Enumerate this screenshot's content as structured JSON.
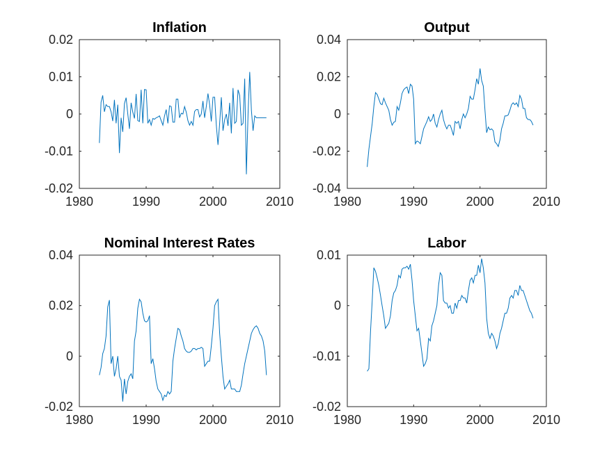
{
  "chart_data": [
    {
      "type": "line",
      "title": "Inflation",
      "xlim": [
        1980,
        2010
      ],
      "ylim": [
        -0.02,
        0.02
      ],
      "xticks": [
        1980,
        1990,
        2000,
        2010
      ],
      "xtick_labels": [
        "1980",
        "1990",
        "2000",
        "2010"
      ],
      "yticks": [
        -0.02,
        -0.01,
        0,
        0.01,
        0.02
      ],
      "ytick_labels": [
        "-0.02",
        "-0.01",
        "0",
        "0.01",
        "0.02"
      ],
      "color": "#0072BD",
      "grid": false,
      "x": [
        1983.0,
        1983.25,
        1983.5,
        1983.75,
        1984.0,
        1984.25,
        1984.5,
        1984.75,
        1985.0,
        1985.25,
        1985.5,
        1985.75,
        1986.0,
        1986.25,
        1986.5,
        1986.75,
        1987.0,
        1987.25,
        1987.5,
        1987.75,
        1988.0,
        1988.25,
        1988.5,
        1988.75,
        1989.0,
        1989.25,
        1989.5,
        1989.75,
        1990.0,
        1990.25,
        1990.5,
        1990.75,
        1991.0,
        1991.25,
        1991.5,
        1991.75,
        1992.0,
        1992.25,
        1992.5,
        1992.75,
        1993.0,
        1993.25,
        1993.5,
        1993.75,
        1994.0,
        1994.25,
        1994.5,
        1994.75,
        1995.0,
        1995.25,
        1995.5,
        1995.75,
        1996.0,
        1996.25,
        1996.5,
        1996.75,
        1997.0,
        1997.25,
        1997.5,
        1997.75,
        1998.0,
        1998.25,
        1998.5,
        1998.75,
        1999.0,
        1999.25,
        1999.5,
        1999.75,
        2000.0,
        2000.25,
        2000.5,
        2000.75,
        2001.0,
        2001.25,
        2001.5,
        2001.75,
        2002.0,
        2002.25,
        2002.5,
        2002.75,
        2003.0,
        2003.25,
        2003.5,
        2003.75,
        2004.0,
        2004.25,
        2004.5,
        2004.75,
        2005.0,
        2005.25,
        2005.5,
        2005.75,
        2006.0,
        2006.25,
        2006.5,
        2006.75,
        2007.0,
        2007.25,
        2007.5,
        2007.75,
        2008.0
      ],
      "y": [
        -0.0078,
        0.0032,
        0.005,
        0.0006,
        0.0025,
        0.002,
        0.002,
        0.0006,
        -0.0019,
        0.0038,
        -0.0025,
        0.0025,
        -0.0105,
        -0.001,
        -0.0048,
        0.0028,
        0.0044,
        0.0,
        -0.004,
        0.003,
        0.0005,
        -0.0012,
        0.0054,
        -0.0018,
        -0.002,
        0.0065,
        -0.0025,
        0.0066,
        0.0065,
        -0.0025,
        -0.0015,
        -0.003,
        -0.0012,
        -0.0014,
        -0.001,
        -0.0008,
        -0.0005,
        -0.0018,
        -0.003,
        -0.0005,
        0.0012,
        -0.0025,
        0.0022,
        0.002,
        -0.0022,
        -0.0022,
        0.004,
        0.004,
        -0.001,
        0.0002,
        0.0,
        0.002,
        0.0005,
        -0.0018,
        -0.003,
        -0.002,
        -0.003,
        0.0007,
        0.0012,
        0.0012,
        -0.0008,
        0.0,
        0.0035,
        -0.001,
        0.002,
        0.0055,
        0.0025,
        -0.002,
        0.0045,
        0.0045,
        -0.003,
        -0.0083,
        -0.0025,
        0.0045,
        -0.0045,
        -0.0015,
        0.0,
        -0.0032,
        0.003,
        -0.0052,
        0.007,
        -0.0025,
        -0.002,
        0.0065,
        0.005,
        -0.003,
        -0.0025,
        0.0095,
        -0.0162,
        0.0,
        0.0113,
        0.001,
        -0.0045,
        -0.0005,
        -0.001,
        -0.001,
        -0.001,
        -0.001,
        -0.001,
        -0.001,
        -0.001
      ]
    },
    {
      "type": "line",
      "title": "Output",
      "xlim": [
        1980,
        2010
      ],
      "ylim": [
        -0.04,
        0.04
      ],
      "xticks": [
        1980,
        1990,
        2000,
        2010
      ],
      "xtick_labels": [
        "1980",
        "1990",
        "2000",
        "2010"
      ],
      "yticks": [
        -0.04,
        -0.02,
        0,
        0.02,
        0.04
      ],
      "ytick_labels": [
        "-0.04",
        "-0.02",
        "0",
        "0.02",
        "0.04"
      ],
      "color": "#0072BD",
      "grid": false,
      "x": [
        1983.0,
        1983.25,
        1983.5,
        1983.75,
        1984.0,
        1984.25,
        1984.5,
        1984.75,
        1985.0,
        1985.25,
        1985.5,
        1985.75,
        1986.0,
        1986.25,
        1986.5,
        1986.75,
        1987.0,
        1987.25,
        1987.5,
        1987.75,
        1988.0,
        1988.25,
        1988.5,
        1988.75,
        1989.0,
        1989.25,
        1989.5,
        1989.75,
        1990.0,
        1990.25,
        1990.5,
        1990.75,
        1991.0,
        1991.25,
        1991.5,
        1991.75,
        1992.0,
        1992.25,
        1992.5,
        1992.75,
        1993.0,
        1993.25,
        1993.5,
        1993.75,
        1994.0,
        1994.25,
        1994.5,
        1994.75,
        1995.0,
        1995.25,
        1995.5,
        1995.75,
        1996.0,
        1996.25,
        1996.5,
        1996.75,
        1997.0,
        1997.25,
        1997.5,
        1997.75,
        1998.0,
        1998.25,
        1998.5,
        1998.75,
        1999.0,
        1999.25,
        1999.5,
        1999.75,
        2000.0,
        2000.25,
        2000.5,
        2000.75,
        2001.0,
        2001.25,
        2001.5,
        2001.75,
        2002.0,
        2002.25,
        2002.5,
        2002.75,
        2003.0,
        2003.25,
        2003.5,
        2003.75,
        2004.0,
        2004.25,
        2004.5,
        2004.75,
        2005.0,
        2005.25,
        2005.5,
        2005.75,
        2006.0,
        2006.25,
        2006.5,
        2006.75,
        2007.0,
        2007.25,
        2007.5,
        2007.75,
        2008.0
      ],
      "y": [
        -0.0285,
        -0.019,
        -0.012,
        -0.005,
        0.004,
        0.0115,
        0.0105,
        0.008,
        0.0055,
        0.005,
        0.0085,
        0.006,
        0.004,
        0.002,
        -0.003,
        -0.006,
        -0.0045,
        -0.004,
        0.004,
        0.002,
        0.006,
        0.011,
        0.013,
        0.014,
        0.0145,
        0.011,
        0.016,
        0.015,
        0.008,
        -0.016,
        -0.0145,
        -0.015,
        -0.016,
        -0.012,
        -0.008,
        -0.006,
        -0.004,
        -0.0015,
        -0.004,
        -0.003,
        0.0,
        -0.005,
        -0.007,
        -0.003,
        0.0,
        0.002,
        -0.003,
        -0.006,
        -0.008,
        -0.006,
        -0.006,
        -0.0085,
        -0.0115,
        -0.004,
        -0.005,
        -0.004,
        -0.008,
        -0.003,
        0.0,
        -0.002,
        0.0,
        0.003,
        0.0095,
        0.008,
        0.008,
        0.013,
        0.019,
        0.016,
        0.0245,
        0.018,
        0.015,
        0.002,
        -0.01,
        -0.007,
        -0.0085,
        -0.008,
        -0.009,
        -0.015,
        -0.016,
        -0.0175,
        -0.014,
        -0.008,
        -0.005,
        -0.001,
        -0.001,
        -0.0005,
        0.002,
        0.005,
        0.006,
        0.005,
        0.006,
        0.004,
        0.01,
        0.008,
        0.003,
        0.003,
        -0.002,
        -0.003,
        -0.003,
        -0.004,
        -0.006
      ]
    },
    {
      "type": "line",
      "title": "Nominal Interest Rates",
      "xlim": [
        1980,
        2010
      ],
      "ylim": [
        -0.02,
        0.04
      ],
      "xticks": [
        1980,
        1990,
        2000,
        2010
      ],
      "xtick_labels": [
        "1980",
        "1990",
        "2000",
        "2010"
      ],
      "yticks": [
        -0.02,
        0,
        0.02,
        0.04
      ],
      "ytick_labels": [
        "-0.02",
        "0",
        "0.02",
        "0.04"
      ],
      "color": "#0072BD",
      "grid": false,
      "x": [
        1983.0,
        1983.25,
        1983.5,
        1983.75,
        1984.0,
        1984.25,
        1984.5,
        1984.75,
        1985.0,
        1985.25,
        1985.5,
        1985.75,
        1986.0,
        1986.25,
        1986.5,
        1986.75,
        1987.0,
        1987.25,
        1987.5,
        1987.75,
        1988.0,
        1988.25,
        1988.5,
        1988.75,
        1989.0,
        1989.25,
        1989.5,
        1989.75,
        1990.0,
        1990.25,
        1990.5,
        1990.75,
        1991.0,
        1991.25,
        1991.5,
        1991.75,
        1992.0,
        1992.25,
        1992.5,
        1992.75,
        1993.0,
        1993.25,
        1993.5,
        1993.75,
        1994.0,
        1994.25,
        1994.5,
        1994.75,
        1995.0,
        1995.25,
        1995.5,
        1995.75,
        1996.0,
        1996.25,
        1996.5,
        1996.75,
        1997.0,
        1997.25,
        1997.5,
        1997.75,
        1998.0,
        1998.25,
        1998.5,
        1998.75,
        1999.0,
        1999.25,
        1999.5,
        1999.75,
        2000.0,
        2000.25,
        2000.5,
        2000.75,
        2001.0,
        2001.25,
        2001.5,
        2001.75,
        2002.0,
        2002.25,
        2002.5,
        2002.75,
        2003.0,
        2003.25,
        2003.5,
        2003.75,
        2004.0,
        2004.25,
        2004.5,
        2004.75,
        2005.0,
        2005.25,
        2005.5,
        2005.75,
        2006.0,
        2006.25,
        2006.5,
        2006.75,
        2007.0,
        2007.25,
        2007.5,
        2007.75,
        2008.0
      ],
      "y": [
        -0.0075,
        -0.0045,
        0.001,
        0.003,
        0.008,
        0.0195,
        0.0222,
        -0.003,
        0.0,
        -0.008,
        -0.005,
        0.0,
        -0.008,
        -0.0095,
        -0.018,
        -0.009,
        -0.015,
        -0.01,
        -0.008,
        -0.007,
        -0.009,
        0.006,
        0.01,
        0.019,
        0.0225,
        0.0215,
        0.017,
        0.014,
        0.0135,
        0.014,
        0.016,
        -0.003,
        -0.001,
        -0.005,
        -0.01,
        -0.013,
        -0.014,
        -0.015,
        -0.0175,
        -0.0155,
        -0.016,
        -0.014,
        -0.015,
        -0.014,
        -0.002,
        0.003,
        0.007,
        0.011,
        0.0105,
        0.008,
        0.006,
        0.003,
        0.002,
        0.0015,
        0.0015,
        0.002,
        0.003,
        0.003,
        0.0025,
        0.003,
        0.003,
        0.0035,
        0.003,
        -0.004,
        -0.003,
        -0.002,
        -0.002,
        0.004,
        0.011,
        0.02,
        0.0215,
        0.0225,
        0.009,
        0.0,
        -0.008,
        -0.013,
        -0.012,
        -0.011,
        -0.0095,
        -0.013,
        -0.013,
        -0.013,
        -0.014,
        -0.014,
        -0.014,
        -0.0115,
        -0.007,
        -0.003,
        0.0,
        0.003,
        0.006,
        0.009,
        0.0105,
        0.0115,
        0.012,
        0.011,
        0.009,
        0.008,
        0.006,
        0.002,
        -0.0075
      ]
    },
    {
      "type": "line",
      "title": "Labor",
      "xlim": [
        1980,
        2010
      ],
      "ylim": [
        -0.02,
        0.01
      ],
      "xticks": [
        1980,
        1990,
        2000,
        2010
      ],
      "xtick_labels": [
        "1980",
        "1990",
        "2000",
        "2010"
      ],
      "yticks": [
        -0.02,
        -0.01,
        0,
        0.01
      ],
      "ytick_labels": [
        "-0.02",
        "-0.01",
        "0",
        "0.01"
      ],
      "color": "#0072BD",
      "grid": false,
      "x": [
        1983.0,
        1983.25,
        1983.5,
        1983.75,
        1984.0,
        1984.25,
        1984.5,
        1984.75,
        1985.0,
        1985.25,
        1985.5,
        1985.75,
        1986.0,
        1986.25,
        1986.5,
        1986.75,
        1987.0,
        1987.25,
        1987.5,
        1987.75,
        1988.0,
        1988.25,
        1988.5,
        1988.75,
        1989.0,
        1989.25,
        1989.5,
        1989.75,
        1990.0,
        1990.25,
        1990.5,
        1990.75,
        1991.0,
        1991.25,
        1991.5,
        1991.75,
        1992.0,
        1992.25,
        1992.5,
        1992.75,
        1993.0,
        1993.25,
        1993.5,
        1993.75,
        1994.0,
        1994.25,
        1994.5,
        1994.75,
        1995.0,
        1995.25,
        1995.5,
        1995.75,
        1996.0,
        1996.25,
        1996.5,
        1996.75,
        1997.0,
        1997.25,
        1997.5,
        1997.75,
        1998.0,
        1998.25,
        1998.5,
        1998.75,
        1999.0,
        1999.25,
        1999.5,
        1999.75,
        2000.0,
        2000.25,
        2000.5,
        2000.75,
        2001.0,
        2001.25,
        2001.5,
        2001.75,
        2002.0,
        2002.25,
        2002.5,
        2002.75,
        2003.0,
        2003.25,
        2003.5,
        2003.75,
        2004.0,
        2004.25,
        2004.5,
        2004.75,
        2005.0,
        2005.25,
        2005.5,
        2005.75,
        2006.0,
        2006.25,
        2006.5,
        2006.75,
        2007.0,
        2007.25,
        2007.5,
        2007.75,
        2008.0
      ],
      "y": [
        -0.013,
        -0.0125,
        -0.005,
        0.001,
        0.0075,
        0.0068,
        0.0055,
        0.004,
        0.002,
        0.0,
        -0.002,
        -0.0045,
        -0.004,
        -0.0035,
        -0.002,
        0.001,
        0.0025,
        0.003,
        0.004,
        0.006,
        0.0055,
        0.0072,
        0.0075,
        0.0075,
        0.0078,
        0.0072,
        0.0082,
        0.005,
        0.001,
        -0.002,
        -0.005,
        -0.0045,
        -0.007,
        -0.0095,
        -0.012,
        -0.0115,
        -0.0105,
        -0.0065,
        -0.007,
        -0.004,
        -0.003,
        -0.0015,
        0.0,
        0.004,
        0.0065,
        0.006,
        0.001,
        0.0005,
        0.0005,
        -0.0005,
        0.0,
        -0.0015,
        -0.0015,
        0.0005,
        -0.0005,
        0.001,
        0.001,
        0.002,
        0.0015,
        0.0015,
        0.0005,
        0.003,
        0.005,
        0.0055,
        0.0045,
        0.006,
        0.006,
        0.008,
        0.0065,
        0.0093,
        0.0075,
        0.0045,
        -0.0025,
        -0.0055,
        -0.0065,
        -0.0055,
        -0.006,
        -0.007,
        -0.0085,
        -0.0075,
        -0.0055,
        -0.0045,
        -0.003,
        -0.0015,
        -0.0015,
        -0.0005,
        0.0015,
        0.002,
        0.0015,
        0.003,
        0.003,
        0.002,
        0.004,
        0.003,
        0.003,
        0.002,
        0.001,
        0.0,
        -0.001,
        -0.0015,
        -0.0025
      ]
    }
  ]
}
